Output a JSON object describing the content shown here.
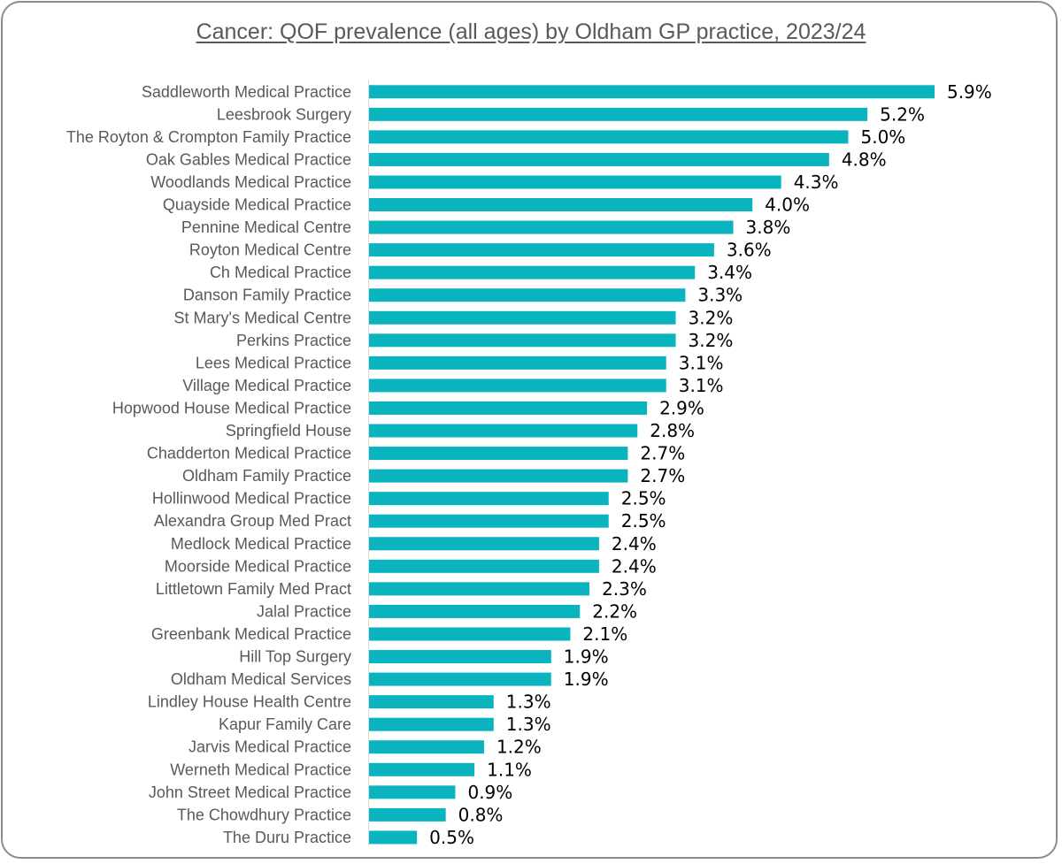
{
  "chart_data": {
    "type": "bar",
    "orientation": "horizontal",
    "title": "Cancer: QOF prevalence (all ages) by Oldham GP practice, 2023/24",
    "xlim": [
      0,
      6.0
    ],
    "grid": false,
    "legend": "none",
    "bar_color": "#0ab4bf",
    "categories": [
      "Saddleworth Medical Practice",
      "Leesbrook Surgery",
      "The Royton & Crompton Family Practice",
      "Oak Gables Medical Practice",
      "Woodlands Medical Practice",
      "Quayside Medical Practice",
      "Pennine Medical Centre",
      "Royton Medical Centre",
      "Ch Medical Practice",
      "Danson Family Practice",
      "St Mary's Medical Centre",
      "Perkins Practice",
      "Lees Medical Practice",
      "Village Medical Practice",
      "Hopwood House Medical Practice",
      "Springfield House",
      "Chadderton Medical Practice",
      "Oldham Family Practice",
      "Hollinwood Medical Practice",
      "Alexandra Group Med Pract",
      "Medlock Medical Practice",
      "Moorside Medical Practice",
      "Littletown Family Med Pract",
      "Jalal Practice",
      "Greenbank Medical Practice",
      "Hill Top Surgery",
      "Oldham Medical Services",
      "Lindley House Health Centre",
      "Kapur Family Care",
      "Jarvis Medical Practice",
      "Werneth Medical Practice",
      "John Street Medical Practice",
      "The Chowdhury Practice",
      "The Duru Practice"
    ],
    "values": [
      5.9,
      5.2,
      5.0,
      4.8,
      4.3,
      4.0,
      3.8,
      3.6,
      3.4,
      3.3,
      3.2,
      3.2,
      3.1,
      3.1,
      2.9,
      2.8,
      2.7,
      2.7,
      2.5,
      2.5,
      2.4,
      2.4,
      2.3,
      2.2,
      2.1,
      1.9,
      1.9,
      1.3,
      1.3,
      1.2,
      1.1,
      0.9,
      0.8,
      0.5
    ],
    "data_labels": [
      "5.9%",
      "5.2%",
      "5.0%",
      "4.8%",
      "4.3%",
      "4.0%",
      "3.8%",
      "3.6%",
      "3.4%",
      "3.3%",
      "3.2%",
      "3.2%",
      "3.1%",
      "3.1%",
      "2.9%",
      "2.8%",
      "2.7%",
      "2.7%",
      "2.5%",
      "2.5%",
      "2.4%",
      "2.4%",
      "2.3%",
      "2.2%",
      "2.1%",
      "1.9%",
      "1.9%",
      "1.3%",
      "1.3%",
      "1.2%",
      "1.1%",
      "0.9%",
      "0.8%",
      "0.5%"
    ]
  }
}
